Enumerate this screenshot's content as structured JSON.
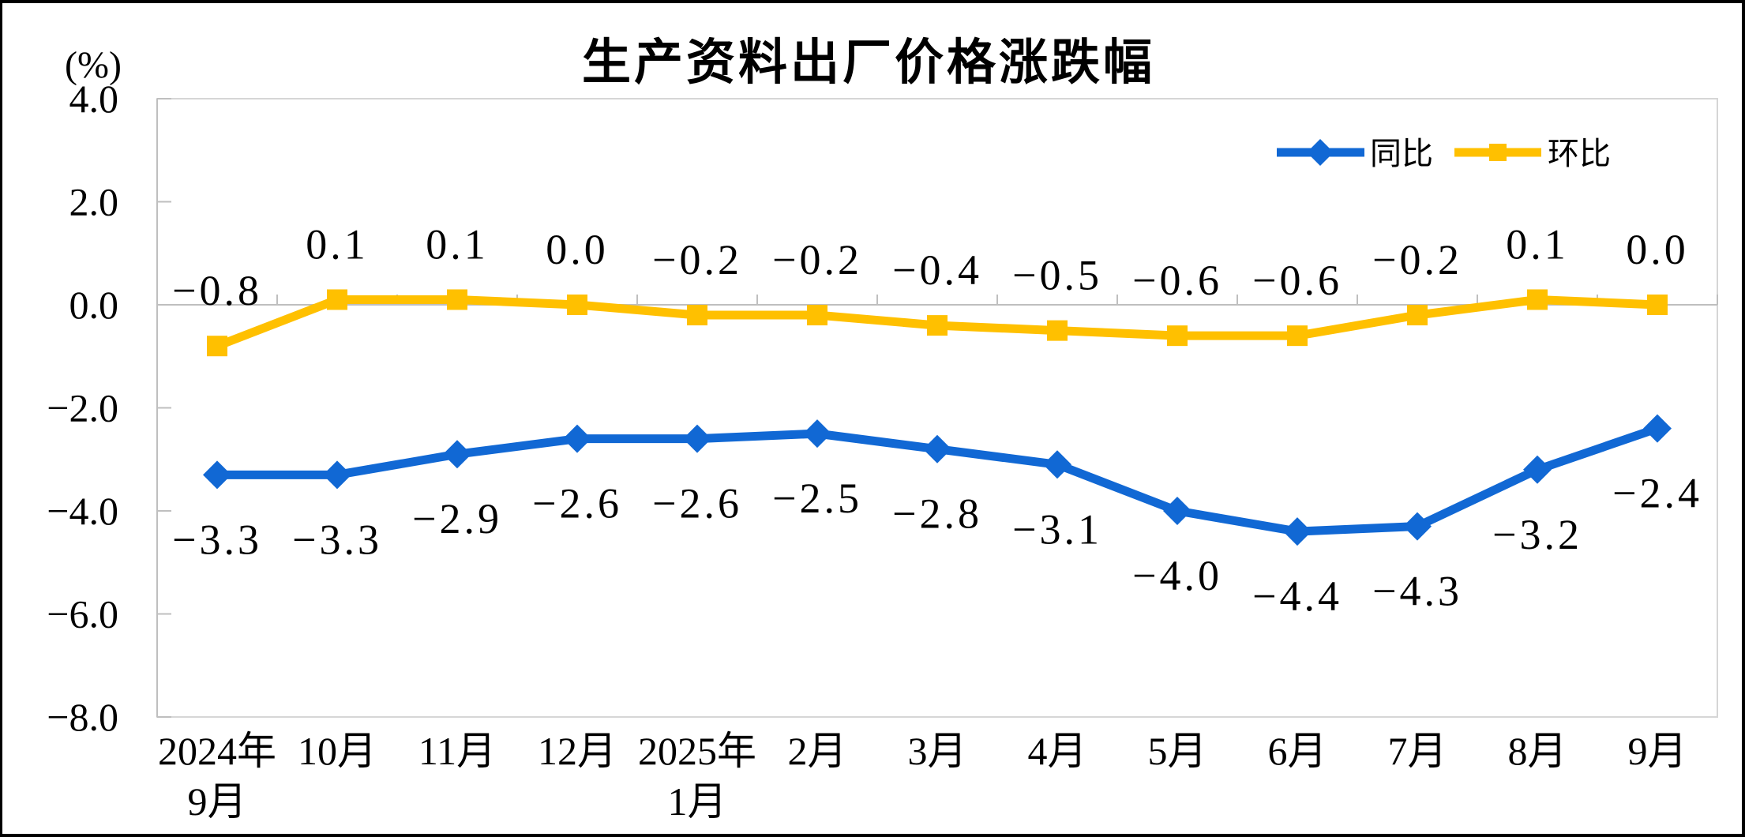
{
  "chart_data": {
    "type": "line",
    "title": "生产资料出厂价格涨跌幅",
    "unit_label": "(%)",
    "categories": [
      [
        "2024年",
        "9月"
      ],
      [
        "10月"
      ],
      [
        "11月"
      ],
      [
        "12月"
      ],
      [
        "2025年",
        "1月"
      ],
      [
        "2月"
      ],
      [
        "3月"
      ],
      [
        "4月"
      ],
      [
        "5月"
      ],
      [
        "6月"
      ],
      [
        "7月"
      ],
      [
        "8月"
      ],
      [
        "9月"
      ]
    ],
    "series": [
      {
        "name": "同比",
        "color": "#1168D4",
        "marker": "diamond",
        "label_position": "below",
        "values": [
          -3.3,
          -3.3,
          -2.9,
          -2.6,
          -2.6,
          -2.5,
          -2.8,
          -3.1,
          -4.0,
          -4.4,
          -4.3,
          -3.2,
          -2.4
        ]
      },
      {
        "name": "环比",
        "color": "#FFC000",
        "marker": "square",
        "label_position": "above",
        "values": [
          -0.8,
          0.1,
          0.1,
          0.0,
          -0.2,
          -0.2,
          -0.4,
          -0.5,
          -0.6,
          -0.6,
          -0.2,
          0.1,
          0.0
        ]
      }
    ],
    "y_axis": {
      "min": -8.0,
      "max": 4.0,
      "step": 2.0,
      "tick_labels": [
        "4.0",
        "2.0",
        "0.0",
        "-2.0",
        "-4.0",
        "-6.0",
        "-8.0"
      ]
    },
    "legend_position": "top-right-inside",
    "grid": false,
    "colors": {
      "background": "#FFFFFF",
      "frame": "#000000",
      "plot_border": "#D6D6D6",
      "axis_line": "#BFBFBF",
      "text": "#000000"
    }
  }
}
